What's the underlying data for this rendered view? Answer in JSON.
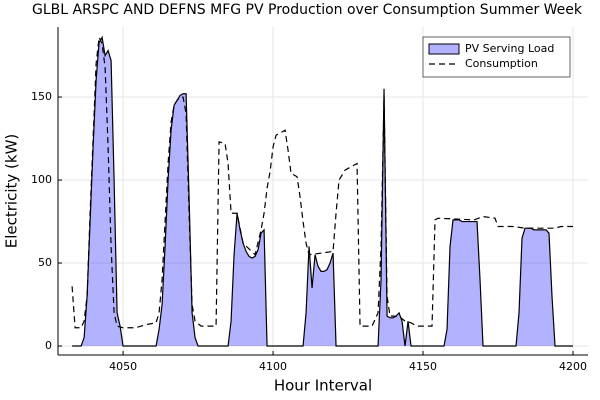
{
  "chart_data": {
    "type": "line",
    "title": "GLBL ARSPC AND DEFNS MFG PV Production over Consumption Summer Week",
    "x_label": "Hour Interval",
    "y_label": "Electricity (kW)",
    "xlim": [
      4028.3,
      4205
    ],
    "ylim": [
      -5.4,
      192.2
    ],
    "xticks": [
      4050,
      4100,
      4150,
      4200
    ],
    "yticks": [
      0,
      50,
      100,
      150
    ],
    "grid": true,
    "legend": "top-right",
    "series": [
      {
        "name": "PV Serving Load",
        "color": "#0000ff",
        "fill": true,
        "x": [
          4033,
          4036,
          4037,
          4038,
          4039,
          4040,
          4041,
          4042,
          4043,
          4044,
          4045,
          4046,
          4047,
          4048,
          4049,
          4050,
          4061,
          4062,
          4063,
          4064,
          4065,
          4066,
          4067,
          4068,
          4069,
          4070,
          4071,
          4072,
          4073,
          4074,
          4075,
          4085,
          4086,
          4087,
          4088,
          4089,
          4090,
          4091,
          4092,
          4093,
          4094,
          4095,
          4096,
          4097,
          4098,
          4099,
          4110,
          4111,
          4112,
          4113,
          4114,
          4115,
          4116,
          4117,
          4118,
          4119,
          4120,
          4121,
          4122,
          4134,
          4135,
          4136,
          4137,
          4138,
          4139,
          4140,
          4141,
          4142,
          4143,
          4144,
          4145,
          4146,
          4156,
          4157,
          4158,
          4159,
          4160,
          4161,
          4162,
          4163,
          4164,
          4165,
          4166,
          4167,
          4168,
          4169,
          4170,
          4180,
          4181,
          4182,
          4183,
          4184,
          4185,
          4186,
          4187,
          4188,
          4189,
          4190,
          4191,
          4192,
          4193,
          4194,
          4200
        ],
        "values": [
          0,
          0,
          5,
          30,
          75,
          120,
          160,
          183,
          186,
          175,
          178,
          172,
          100,
          20,
          12,
          0,
          0,
          10,
          25,
          60,
          100,
          130,
          145,
          148,
          151,
          152,
          152,
          90,
          20,
          5,
          0,
          0,
          15,
          55,
          80,
          70,
          62,
          57,
          54,
          53,
          54,
          58,
          68,
          70,
          0,
          0,
          0,
          20,
          60,
          35,
          55,
          48,
          45,
          45,
          46,
          50,
          56,
          0,
          0,
          0,
          0,
          40,
          155,
          18,
          17,
          17,
          18,
          20,
          15,
          0,
          15,
          0,
          0,
          0,
          10,
          60,
          76,
          76,
          76,
          75,
          75,
          75,
          75,
          75,
          75,
          40,
          0,
          0,
          0,
          20,
          65,
          71,
          71,
          71,
          70,
          70,
          70,
          70,
          70,
          68,
          30,
          0,
          0
        ]
      },
      {
        "name": "Consumption",
        "color": "#000000",
        "dash": true,
        "x": [
          4033,
          4034,
          4036,
          4037,
          4038,
          4039,
          4040,
          4041,
          4042,
          4043,
          4044,
          4045,
          4046,
          4047,
          4048,
          4050,
          4054,
          4058,
          4061,
          4062,
          4063,
          4064,
          4065,
          4066,
          4067,
          4068,
          4069,
          4070,
          4071,
          4072,
          4073,
          4074,
          4076,
          4081,
          4082,
          4084,
          4085,
          4086,
          4088,
          4090,
          4094,
          4096,
          4097,
          4098,
          4099,
          4100,
          4101,
          4104,
          4105,
          4106,
          4108,
          4109,
          4110,
          4111,
          4112,
          4120,
          4121,
          4122,
          4124,
          4128,
          4129,
          4133,
          4135,
          4136,
          4137,
          4138,
          4139,
          4142,
          4144,
          4146,
          4148,
          4153,
          4154,
          4155,
          4167,
          4170,
          4174,
          4175,
          4180,
          4184,
          4194,
          4196,
          4200
        ],
        "values": [
          36,
          11,
          11,
          15,
          30,
          80,
          125,
          170,
          186,
          182,
          168,
          120,
          60,
          20,
          12,
          11,
          11,
          13,
          14,
          20,
          40,
          75,
          110,
          135,
          145,
          148,
          150,
          150,
          140,
          80,
          25,
          15,
          12,
          12,
          123,
          122,
          110,
          80,
          80,
          62,
          55,
          70,
          80,
          95,
          105,
          120,
          127,
          130,
          118,
          104,
          102,
          90,
          75,
          62,
          55,
          57,
          80,
          100,
          106,
          110,
          12,
          12,
          20,
          60,
          150,
          30,
          18,
          18,
          15,
          14,
          12,
          12,
          76,
          77,
          76,
          78,
          77,
          72,
          72,
          71,
          71,
          72,
          72
        ]
      }
    ]
  }
}
